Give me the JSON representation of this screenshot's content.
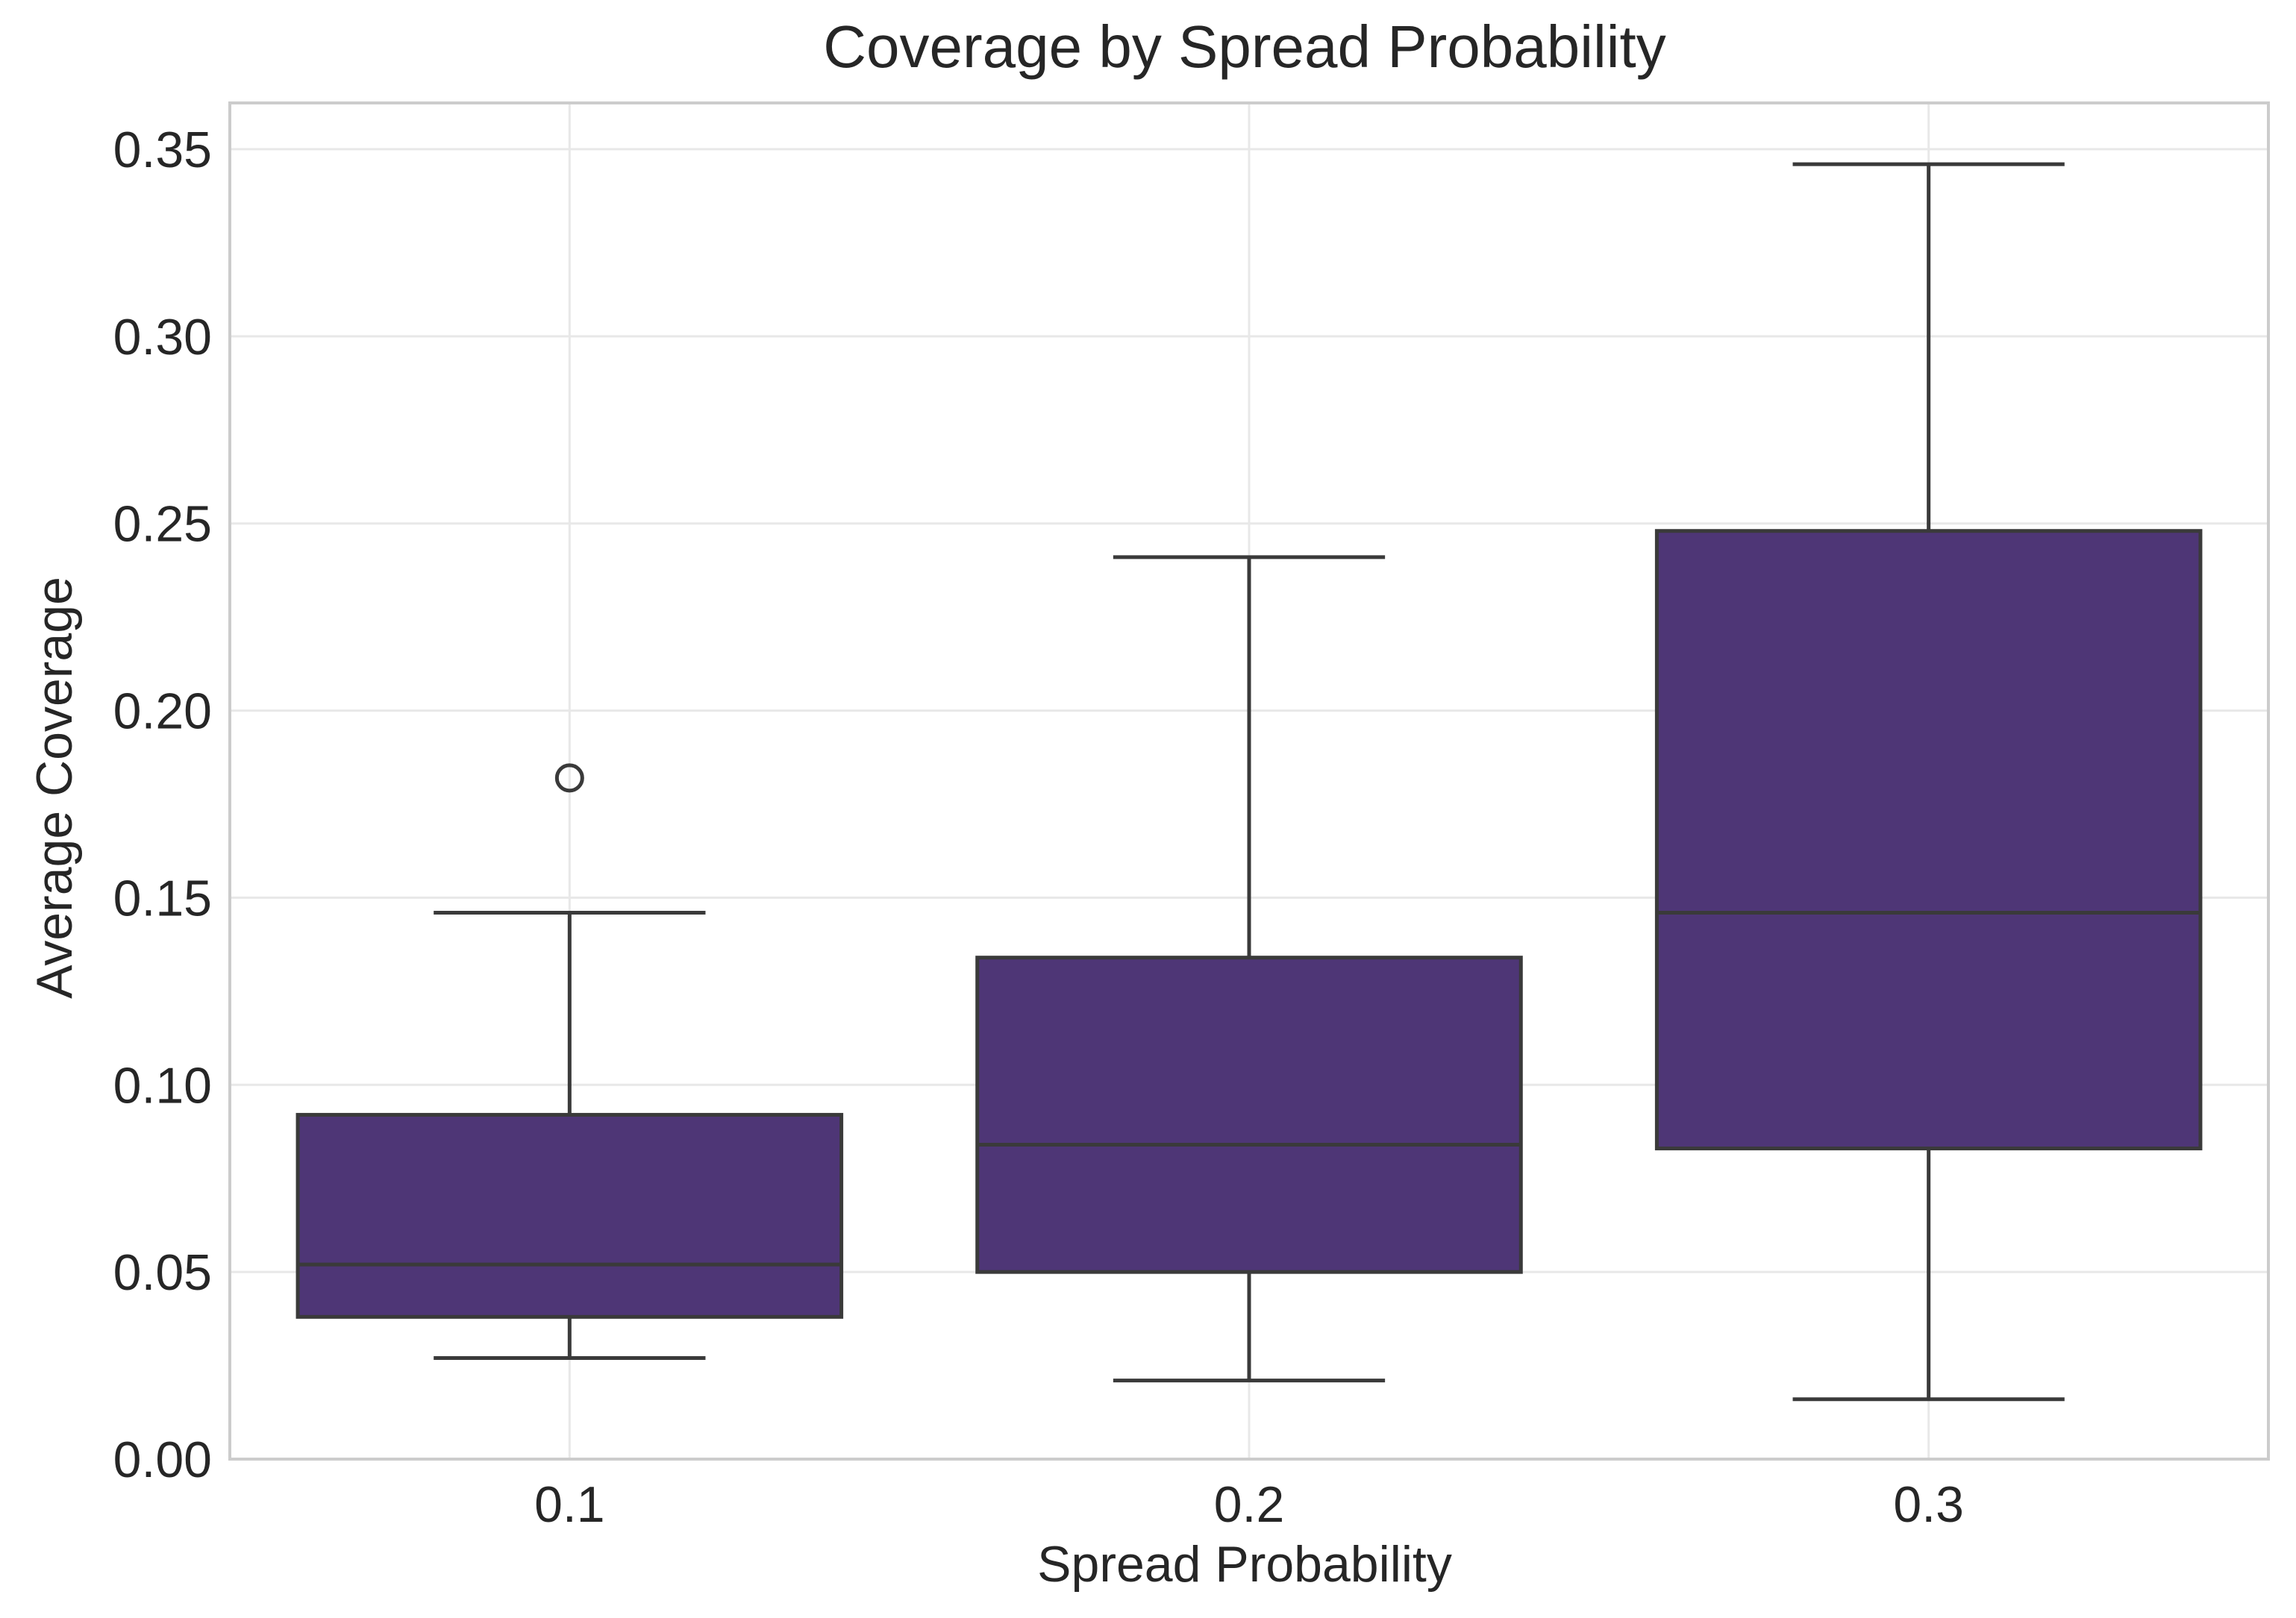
{
  "chart_data": {
    "type": "box",
    "title": "Coverage by Spread Probability",
    "xlabel": "Spread Probability",
    "ylabel": "Average Coverage",
    "ylim": [
      0.0,
      0.35
    ],
    "yticks": [
      0.0,
      0.05,
      0.1,
      0.15,
      0.2,
      0.25,
      0.3,
      0.35
    ],
    "ytick_labels": [
      "0.00",
      "0.05",
      "0.10",
      "0.15",
      "0.20",
      "0.25",
      "0.30",
      "0.35"
    ],
    "categories": [
      "0.1",
      "0.2",
      "0.3"
    ],
    "grid": true,
    "boxes": [
      {
        "category": "0.1",
        "whisker_low": 0.027,
        "q1": 0.038,
        "median": 0.052,
        "q3": 0.092,
        "whisker_high": 0.146,
        "outliers": [
          0.182
        ]
      },
      {
        "category": "0.2",
        "whisker_low": 0.021,
        "q1": 0.05,
        "median": 0.084,
        "q3": 0.134,
        "whisker_high": 0.241,
        "outliers": []
      },
      {
        "category": "0.3",
        "whisker_low": 0.016,
        "q1": 0.083,
        "median": 0.146,
        "q3": 0.248,
        "whisker_high": 0.346,
        "outliers": []
      }
    ],
    "colors": {
      "box_fill": "#4e3676",
      "line": "#3a3a3a",
      "grid": "#e8e8e8",
      "frame": "#cccccc"
    }
  }
}
